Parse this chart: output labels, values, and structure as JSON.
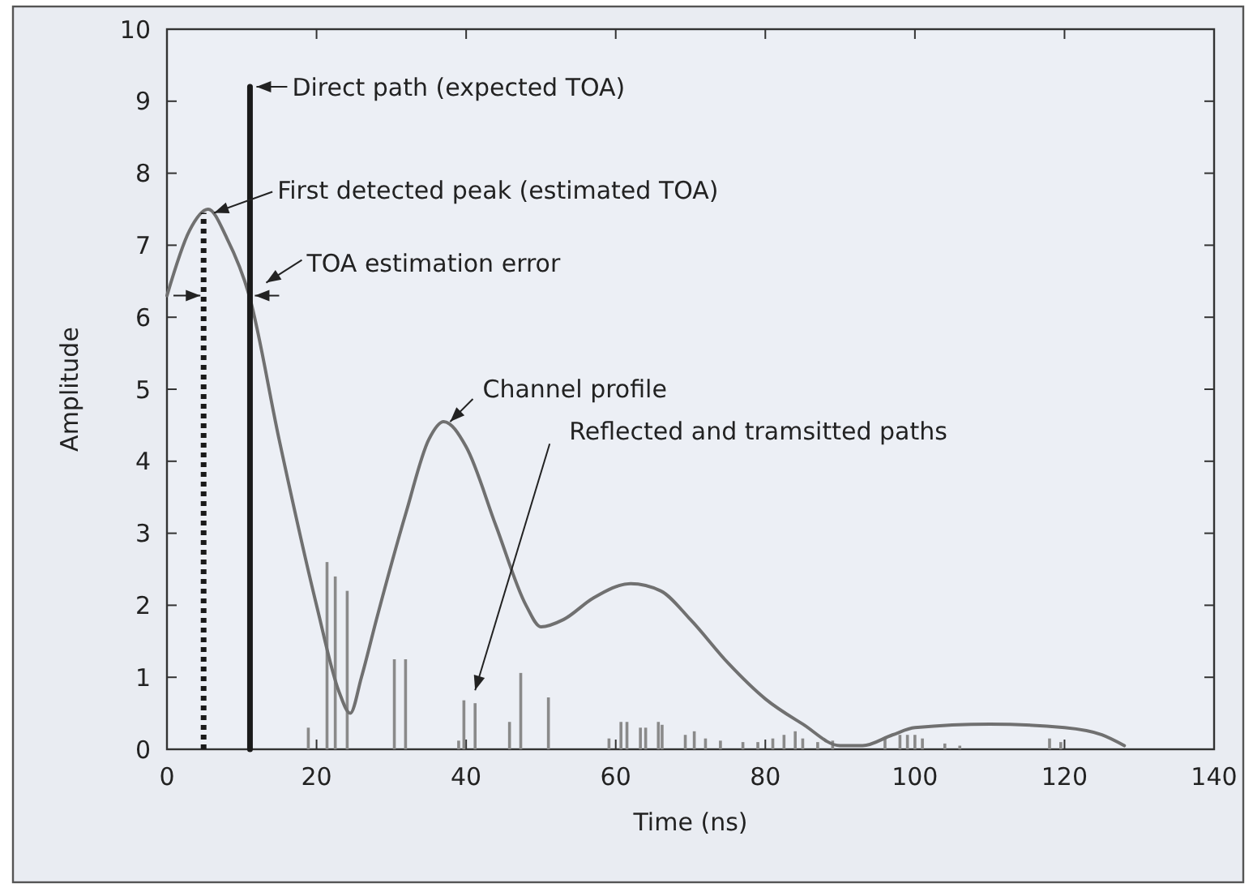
{
  "chart_data": {
    "type": "line",
    "xlabel": "Time (ns)",
    "ylabel": "Amplitude",
    "xlim": [
      0,
      140
    ],
    "ylim": [
      0,
      10
    ],
    "xticks": [
      0,
      20,
      40,
      60,
      80,
      100,
      120,
      140
    ],
    "yticks": [
      0,
      1,
      2,
      3,
      4,
      5,
      6,
      7,
      8,
      9,
      10
    ],
    "grid": false,
    "marker": "none",
    "series": [
      {
        "type": "bar",
        "color": "#8a8a8a",
        "x": [
          18.9,
          21.4,
          22.5,
          24.1,
          30.4,
          31.9,
          39,
          39.7,
          41.2,
          45.8,
          47.3,
          51,
          59.1,
          60.7,
          61.5,
          63.3,
          64,
          65.7,
          66.2,
          69.3,
          70.5,
          72,
          74,
          77,
          79,
          81,
          82.5,
          84,
          85,
          87,
          89,
          96,
          98,
          99,
          100,
          101,
          104,
          106,
          118,
          119.5
        ],
        "values": [
          0.3,
          2.6,
          2.4,
          2.2,
          1.25,
          1.25,
          0.12,
          0.68,
          0.64,
          0.38,
          1.06,
          0.72,
          0.15,
          0.38,
          0.38,
          0.3,
          0.3,
          0.38,
          0.34,
          0.2,
          0.25,
          0.15,
          0.12,
          0.1,
          0.1,
          0.15,
          0.2,
          0.25,
          0.15,
          0.1,
          0.12,
          0.15,
          0.2,
          0.2,
          0.2,
          0.15,
          0.08,
          0.05,
          0.15,
          0.1
        ]
      },
      {
        "color": "#707070",
        "line_style": "solid",
        "x": [
          0,
          3,
          5.5,
          8,
          11,
          15,
          20,
          23,
          24.5,
          26,
          28,
          32,
          35,
          37,
          40,
          44,
          48,
          50,
          53,
          57,
          62,
          66,
          70,
          75,
          80,
          85,
          90,
          93,
          97,
          100,
          110,
          120,
          125,
          128
        ],
        "values": [
          6.3,
          7.2,
          7.5,
          7.1,
          6.3,
          4.3,
          2.0,
          0.8,
          0.5,
          1.0,
          1.8,
          3.3,
          4.3,
          4.55,
          4.2,
          3.1,
          2.0,
          1.7,
          1.8,
          2.1,
          2.3,
          2.2,
          1.8,
          1.2,
          0.7,
          0.35,
          0.05,
          0.05,
          0.2,
          0.3,
          0.35,
          0.3,
          0.2,
          0.05
        ]
      },
      {
        "type": "line",
        "color": "#1a1a1a",
        "line_style": "solid",
        "x": [
          11.1,
          11.1
        ],
        "values": [
          0,
          9.2
        ]
      },
      {
        "type": "line",
        "color": "#1a1a1a",
        "line_style": "dotted",
        "x": [
          4.9,
          4.9
        ],
        "values": [
          0,
          7.45
        ]
      }
    ],
    "annotations": [
      {
        "text": "Direct path (expected TOA)",
        "x": 11.1,
        "y": 9.2
      },
      {
        "text": "First detected peak (estimated TOA)",
        "x": 5,
        "y": 7.45
      },
      {
        "text": "TOA estimation error",
        "x": 11.1,
        "y": 6.3
      },
      {
        "text": "Channel profile",
        "x": 37,
        "y": 4.55
      },
      {
        "text": "Reflected and tramsitted paths",
        "x": 41.2,
        "y": 0.64
      }
    ]
  }
}
